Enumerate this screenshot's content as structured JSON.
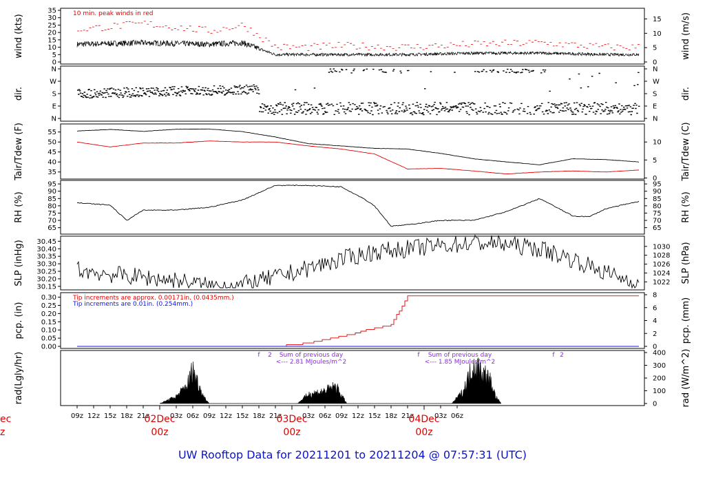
{
  "title": "UW Rooftop Data for 20211201  to  20211204 @ 07:57:31  (UTC)",
  "chart_data": [
    {
      "type": "line",
      "ylabel_left": "wind (kts)",
      "ylabel_right": "wind (m/s)",
      "yticks_left": [
        "0",
        "5",
        "10",
        "15",
        "20",
        "25",
        "30",
        "35"
      ],
      "yticks_right": [
        "0",
        "5",
        "10",
        "15"
      ],
      "ylim": [
        0,
        35
      ],
      "annotation": "10 min. peak winds in red",
      "series": [
        {
          "color": "#000000",
          "x_hours": [
            0,
            12,
            24,
            30,
            36,
            42,
            48,
            60,
            72,
            84,
            96,
            102
          ],
          "values": [
            12,
            13,
            12,
            13,
            5,
            5,
            5,
            5,
            6,
            6,
            5,
            5
          ]
        },
        {
          "color": "#e00000",
          "x_hours": [
            0,
            12,
            24,
            30,
            36,
            42,
            48,
            60,
            72,
            84,
            96,
            102
          ],
          "values": [
            22,
            26,
            21,
            25,
            10,
            10,
            11,
            10,
            12,
            13,
            10,
            10
          ]
        }
      ]
    },
    {
      "type": "scatter",
      "ylabel_left": "dir.",
      "ylabel_right": "dir.",
      "yticks_left": [
        "N",
        "E",
        "S",
        "W",
        "N"
      ],
      "yticks_right": [
        "N",
        "E",
        "S",
        "W",
        "N"
      ],
      "ylim": [
        0,
        360
      ]
    },
    {
      "type": "line",
      "ylabel_left": "Tair/Tdew (F)",
      "ylabel_right": "Tair/Tdew (C)",
      "yticks_left": [
        "35",
        "40",
        "45",
        "50",
        "55"
      ],
      "yticks_right": [
        "0",
        "5",
        "10"
      ],
      "ylim": [
        32.5,
        58
      ],
      "series": [
        {
          "color": "#000000",
          "x_hours": [
            0,
            6,
            12,
            18,
            24,
            30,
            36,
            42,
            48,
            54,
            60,
            66,
            72,
            78,
            84,
            90,
            96,
            102
          ],
          "values": [
            55.5,
            56.3,
            55.3,
            56.4,
            56.5,
            55.2,
            52.5,
            49.2,
            48.0,
            46.8,
            46.5,
            44.3,
            41.6,
            40.0,
            38.6,
            41.6,
            41.2,
            40.0
          ]
        },
        {
          "color": "#e00000",
          "x_hours": [
            0,
            6,
            12,
            18,
            24,
            30,
            36,
            42,
            48,
            54,
            60,
            66,
            72,
            78,
            84,
            90,
            96,
            102
          ],
          "values": [
            50.0,
            47.5,
            49.5,
            49.5,
            50.5,
            50.0,
            50.0,
            48.0,
            46.5,
            44.0,
            36.5,
            36.8,
            35.5,
            34.0,
            35.0,
            35.5,
            35.0,
            36.0
          ]
        }
      ]
    },
    {
      "type": "line",
      "ylabel_left": "RH (%)",
      "ylabel_right": "RH (%)",
      "yticks_left": [
        "65",
        "70",
        "75",
        "80",
        "85",
        "90",
        "95"
      ],
      "yticks_right": [
        "65",
        "70",
        "75",
        "80",
        "85",
        "90",
        "95"
      ],
      "ylim": [
        62,
        96
      ],
      "series": [
        {
          "color": "#000000",
          "x_hours": [
            0,
            6,
            9,
            12,
            18,
            24,
            30,
            36,
            42,
            48,
            52,
            54,
            57,
            60,
            66,
            72,
            78,
            84,
            90,
            93,
            96,
            102
          ],
          "values": [
            82,
            80.5,
            70,
            77,
            77,
            79,
            84,
            94,
            94,
            93,
            85,
            80,
            66,
            67,
            70,
            70,
            76,
            85,
            73,
            72.5,
            78,
            83
          ]
        }
      ]
    },
    {
      "type": "line",
      "ylabel_left": "SLP (inHg)",
      "ylabel_right": "SLP (hPa)",
      "yticks_left": [
        "30.15",
        "30.20",
        "30.25",
        "30.30",
        "30.35",
        "30.40",
        "30.45"
      ],
      "yticks_right": [
        "1022",
        "1024",
        "1026",
        "1028",
        "1030"
      ],
      "ylim": [
        30.14,
        30.47
      ],
      "series": [
        {
          "color": "#000000",
          "x_hours": [
            0,
            6,
            12,
            18,
            24,
            30,
            36,
            42,
            48,
            54,
            60,
            66,
            72,
            78,
            84,
            90,
            96,
            102
          ],
          "values": [
            30.26,
            30.23,
            30.21,
            30.19,
            30.15,
            30.16,
            30.21,
            30.27,
            30.33,
            30.38,
            30.4,
            30.42,
            30.44,
            30.43,
            30.4,
            30.33,
            30.24,
            30.17
          ]
        }
      ]
    },
    {
      "type": "line",
      "ylabel_left": "pcp. (in)",
      "ylabel_right": "pcp. (mm)",
      "yticks_left": [
        "0.00",
        "0.05",
        "0.10",
        "0.15",
        "0.20",
        "0.25",
        "0.30"
      ],
      "yticks_right": [
        "0",
        "2",
        "4",
        "6",
        "8"
      ],
      "ylim": [
        0,
        0.315
      ],
      "annotation_1": "Tip increments are approx. 0.00171in. (0.0435mm.)",
      "annotation_2": "Tip increments are 0.01in. (0.254mm.)",
      "series": [
        {
          "color": "#e00000",
          "x_hours": [
            0,
            36,
            42,
            48,
            54,
            57,
            60,
            102
          ],
          "values": [
            0,
            0,
            0.02,
            0.06,
            0.11,
            0.13,
            0.31,
            0.31
          ]
        },
        {
          "color": "#1010e0",
          "x_hours": [
            0,
            102
          ],
          "values": [
            0,
            0
          ]
        }
      ]
    },
    {
      "type": "area",
      "ylabel_left": "rad(Lgly/hr)",
      "ylabel_right": "rad (W/m^2)",
      "yticks_right": [
        "0",
        "100",
        "200",
        "300",
        "400"
      ],
      "ylim": [
        0,
        400
      ],
      "markers": [
        {
          "label": "f",
          "x_hours": 33
        },
        {
          "label": "2",
          "x_hours": 35
        },
        {
          "label": "f",
          "x_hours": 62
        },
        {
          "label": "f",
          "x_hours": 86.5
        },
        {
          "label": "2",
          "x_hours": 88
        }
      ],
      "annotations": [
        {
          "line1": "Sum of previous day",
          "line2": "<--- 2.81 MJoules/m^2",
          "x_hours": 45
        },
        {
          "line1": "Sum of previous day",
          "line2": "<--- 1.85 MJoules/m^2",
          "x_hours": 72
        }
      ],
      "series": [
        {
          "color": "#000000",
          "x_hours": [
            15,
            18,
            20,
            21,
            22,
            23,
            24,
            40,
            42,
            45,
            47,
            48,
            49,
            68,
            70,
            72,
            74,
            75,
            76,
            77
          ],
          "values": [
            0,
            60,
            160,
            300,
            170,
            60,
            0,
            0,
            80,
            110,
            150,
            70,
            0,
            0,
            100,
            340,
            260,
            200,
            60,
            0
          ]
        }
      ]
    }
  ],
  "x_axis": {
    "ticks": [
      "09z",
      "12z",
      "15z",
      "18z",
      "21z",
      "03z",
      "06z",
      "09z",
      "12z",
      "15z",
      "18z",
      "21z",
      "03z",
      "06z",
      "09z",
      "12z",
      "15z",
      "18z",
      "21z",
      "03z",
      "06z"
    ],
    "days": [
      {
        "label": "02Dec",
        "sub": "00z"
      },
      {
        "label": "03Dec",
        "sub": "00z"
      },
      {
        "label": "04Dec",
        "sub": "00z"
      }
    ],
    "cut_day_label": "ec",
    "cut_day_sub": "z"
  }
}
